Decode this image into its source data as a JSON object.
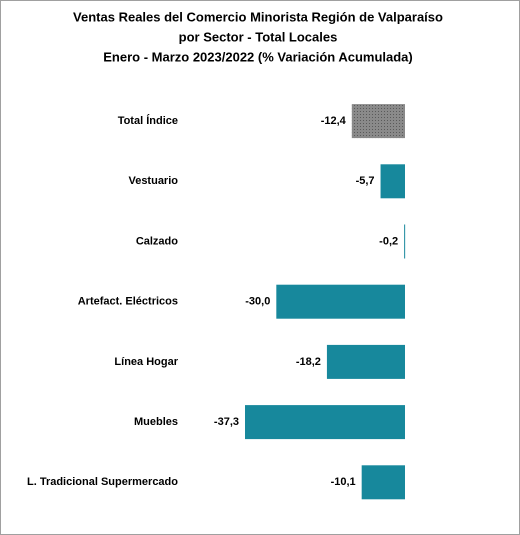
{
  "chart_data": {
    "type": "hbar",
    "title": [
      "Ventas Reales del Comercio Minorista Región de Valparaíso",
      "por Sector  - Total Locales",
      "Enero - Marzo 2023/2022 (% Variación Acumulada)"
    ],
    "categories": [
      "Total Índice",
      "Vestuario",
      "Calzado",
      "Artefact. Eléctricos",
      "Línea Hogar",
      "Muebles",
      "L. Tradicional Supermercado"
    ],
    "values": [
      -12.4,
      -5.7,
      -0.2,
      -30.0,
      -18.2,
      -37.3,
      -10.1
    ],
    "value_labels": [
      "-12,4",
      "-5,7",
      "-0,2",
      "-30,0",
      "-18,2",
      "-37,3",
      "-10,1"
    ],
    "colors": [
      "#808080",
      "#17889c",
      "#17889c",
      "#17889c",
      "#17889c",
      "#17889c",
      "#17889c"
    ]
  }
}
